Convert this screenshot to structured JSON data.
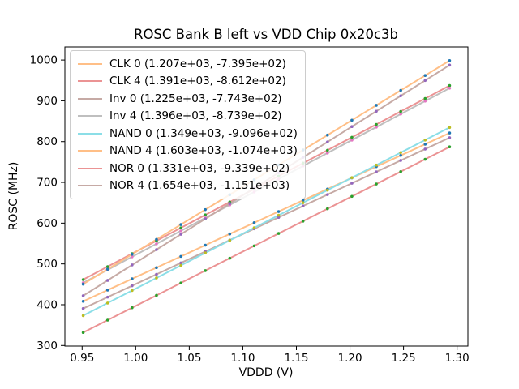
{
  "chart_data": {
    "type": "line",
    "title": "ROSC Bank B left vs VDD Chip 0x20c3b",
    "xlabel": "VDDD (V)",
    "ylabel": "ROSC (MHz)",
    "xlim": [
      0.9339,
      1.3101
    ],
    "ylim": [
      298.6,
      1032.0
    ],
    "xticks": [
      0.95,
      1.0,
      1.05,
      1.1,
      1.15,
      1.2,
      1.25,
      1.3
    ],
    "xtick_labels": [
      "0.95",
      "1.00",
      "1.05",
      "1.10",
      "1.15",
      "1.20",
      "1.25",
      "1.30"
    ],
    "yticks": [
      300,
      400,
      500,
      600,
      700,
      800,
      900,
      1000
    ],
    "ytick_labels": [
      "300",
      "400",
      "500",
      "600",
      "700",
      "800",
      "900",
      "1000"
    ],
    "grid": false,
    "legend_position": "upper left",
    "x": [
      0.951,
      0.9738,
      0.9966,
      1.0194,
      1.0422,
      1.065,
      1.0878,
      1.1106,
      1.1334,
      1.1562,
      1.179,
      1.2018,
      1.2246,
      1.2474,
      1.2702,
      1.293
    ],
    "series": [
      {
        "name": "CLK 0",
        "label": "CLK 0 (1.207e+03, -7.395e+02)",
        "fit_slope": 1207.0,
        "fit_intercept": -739.5,
        "line_color": "#ffbf87",
        "marker_color": "#1f77b4",
        "values": [
          408.4,
          435.9,
          463.4,
          490.9,
          518.4,
          546.0,
          573.5,
          601.0,
          628.5,
          656.0,
          683.5,
          711.1,
          738.6,
          766.1,
          793.6,
          821.1
        ]
      },
      {
        "name": "CLK 4",
        "label": "CLK 4 (1.391e+03, -8.612e+02)",
        "fit_slope": 1391.0,
        "fit_intercept": -861.2,
        "line_color": "#eb9394",
        "marker_color": "#2ca02c",
        "values": [
          461.6,
          493.4,
          525.1,
          556.8,
          588.5,
          620.2,
          651.9,
          683.6,
          715.4,
          747.1,
          778.8,
          810.5,
          842.2,
          873.9,
          905.6,
          937.4
        ]
      },
      {
        "name": "Inv 0",
        "label": "Inv 0 (1.225e+03, -7.743e+02)",
        "fit_slope": 1225.0,
        "fit_intercept": -774.3,
        "line_color": "#c6aaa5",
        "marker_color": "#9467bd",
        "values": [
          390.7,
          418.6,
          446.5,
          474.5,
          502.4,
          530.3,
          558.3,
          586.2,
          614.1,
          642.1,
          670.0,
          697.9,
          725.8,
          753.8,
          781.7,
          809.6
        ]
      },
      {
        "name": "Inv 4",
        "label": "Inv 4 (1.396e+03, -8.739e+02)",
        "fit_slope": 1396.0,
        "fit_intercept": -873.9,
        "line_color": "#bfbfbf",
        "marker_color": "#e377c2",
        "values": [
          453.7,
          485.5,
          517.4,
          549.2,
          581.0,
          612.8,
          644.7,
          676.5,
          708.3,
          740.2,
          772.0,
          803.8,
          835.6,
          867.5,
          899.3,
          931.1
        ]
      },
      {
        "name": "NAND 0",
        "label": "NAND 0 (1.349e+03, -9.096e+02)",
        "fit_slope": 1349.0,
        "fit_intercept": -909.6,
        "line_color": "#8bdee7",
        "marker_color": "#bcbd22",
        "values": [
          373.3,
          404.1,
          434.8,
          465.6,
          496.3,
          527.1,
          557.8,
          588.6,
          619.4,
          650.1,
          680.9,
          711.6,
          742.4,
          773.1,
          803.9,
          834.7
        ]
      },
      {
        "name": "NAND 4",
        "label": "NAND 4 (1.603e+03, -1.074e+03)",
        "fit_slope": 1603.0,
        "fit_intercept": -1074.0,
        "line_color": "#ffbf87",
        "marker_color": "#1f77b4",
        "values": [
          450.5,
          487.0,
          523.6,
          560.1,
          596.6,
          633.2,
          669.7,
          706.3,
          742.8,
          779.4,
          815.9,
          852.5,
          889.0,
          925.6,
          962.1,
          998.7
        ]
      },
      {
        "name": "NOR 0",
        "label": "NOR 0 (1.331e+03, -9.339e+02)",
        "fit_slope": 1331.0,
        "fit_intercept": -933.9,
        "line_color": "#eb9394",
        "marker_color": "#2ca02c",
        "values": [
          331.9,
          362.2,
          392.6,
          422.9,
          453.3,
          483.6,
          514.0,
          544.3,
          574.7,
          605.0,
          635.3,
          665.7,
          696.0,
          726.4,
          756.7,
          787.1
        ]
      },
      {
        "name": "NOR 4",
        "label": "NOR 4 (1.654e+03, -1.151e+03)",
        "fit_slope": 1654.0,
        "fit_intercept": -1151.0,
        "line_color": "#c6aaa5",
        "marker_color": "#9467bd",
        "values": [
          422.0,
          459.7,
          497.4,
          535.1,
          572.8,
          610.5,
          648.2,
          685.9,
          723.6,
          761.4,
          799.1,
          836.8,
          874.5,
          912.2,
          949.9,
          987.6
        ]
      }
    ],
    "axis_color": "#000000",
    "background_color": "#ffffff",
    "legend_border_color": "#cccccc"
  }
}
